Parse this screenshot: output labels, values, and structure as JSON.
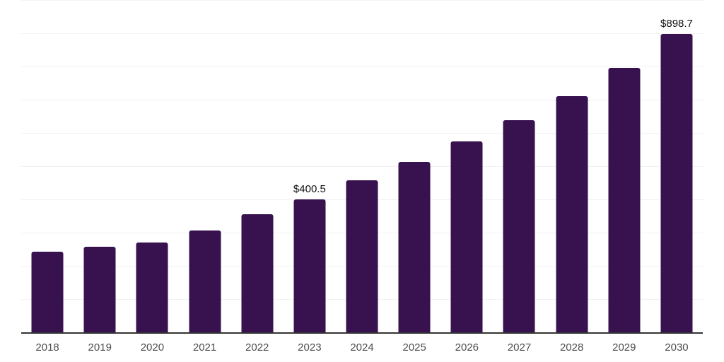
{
  "chart_data": {
    "type": "bar",
    "title": "",
    "xlabel": "",
    "ylabel": "",
    "categories": [
      "2018",
      "2019",
      "2020",
      "2021",
      "2022",
      "2023",
      "2024",
      "2025",
      "2026",
      "2027",
      "2028",
      "2029",
      "2030"
    ],
    "values": [
      242.8,
      257.6,
      271.0,
      306.3,
      355.0,
      400.5,
      457.3,
      513.8,
      575.2,
      637.9,
      711.3,
      796.6,
      898.7
    ],
    "ylim": [
      0,
      1000
    ],
    "grid_step": 100,
    "grid": "horizontal-only",
    "legend": "none",
    "annotations": [
      {
        "category": "2023",
        "label": "$400.5"
      },
      {
        "category": "2030",
        "label": "$898.7"
      }
    ],
    "colors": {
      "bar": "#37124F",
      "axis_line": "#333333",
      "gridline": "#f2f2f2",
      "tick_label": "#4d4d4d",
      "value_label": "#111111",
      "background": "#ffffff"
    }
  }
}
